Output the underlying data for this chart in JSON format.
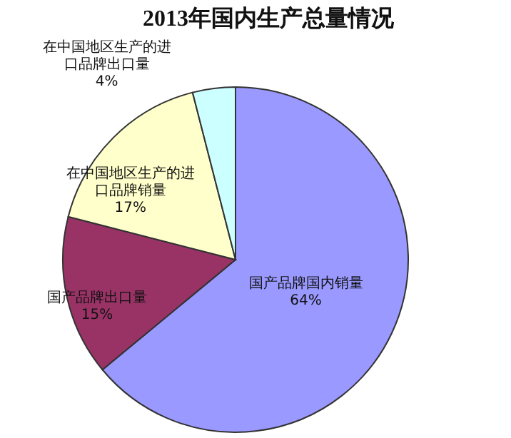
{
  "chart_data": {
    "type": "pie",
    "title": "2013年国内生产总量情况",
    "categories": [
      "国产品牌国内销量",
      "国产品牌出口量",
      "在中国地区生产的进口品牌销量",
      "在中国地区生产的进口品牌出口量"
    ],
    "values": [
      64,
      15,
      17,
      4
    ],
    "value_labels": [
      "64%",
      "15%",
      "17%",
      "4%"
    ],
    "colors": [
      "#9999ff",
      "#993366",
      "#ffffcc",
      "#ccffff"
    ]
  }
}
